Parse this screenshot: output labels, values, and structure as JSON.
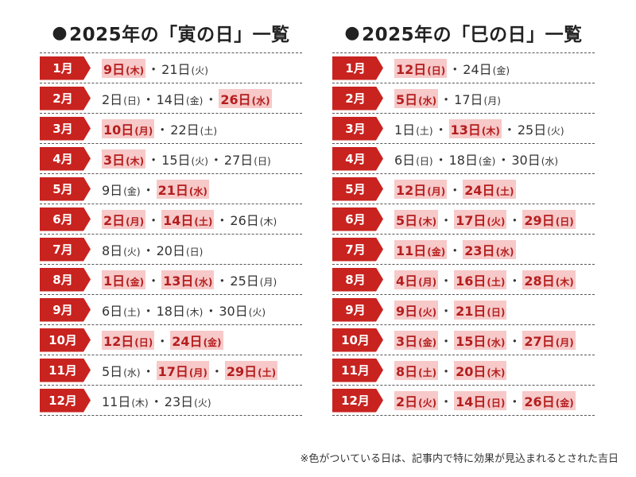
{
  "colors": {
    "accent": "#c8231f",
    "highlight_bg": "#f7c9c9",
    "highlight_text": "#b41e1e"
  },
  "tables": [
    {
      "title": "2025年の「寅の日」一覧",
      "rows": [
        {
          "month": "1月",
          "dates": [
            {
              "d": "9日",
              "w": "(木)",
              "hl": true
            },
            {
              "d": "21日",
              "w": "(火)",
              "hl": false
            }
          ]
        },
        {
          "month": "2月",
          "dates": [
            {
              "d": "2日",
              "w": "(日)",
              "hl": false
            },
            {
              "d": "14日",
              "w": "(金)",
              "hl": false
            },
            {
              "d": "26日",
              "w": "(水)",
              "hl": true
            }
          ]
        },
        {
          "month": "3月",
          "dates": [
            {
              "d": "10日",
              "w": "(月)",
              "hl": true
            },
            {
              "d": "22日",
              "w": "(土)",
              "hl": false
            }
          ]
        },
        {
          "month": "4月",
          "dates": [
            {
              "d": "3日",
              "w": "(木)",
              "hl": true
            },
            {
              "d": "15日",
              "w": "(火)",
              "hl": false
            },
            {
              "d": "27日",
              "w": "(日)",
              "hl": false
            }
          ]
        },
        {
          "month": "5月",
          "dates": [
            {
              "d": "9日",
              "w": "(金)",
              "hl": false
            },
            {
              "d": "21日",
              "w": "(水)",
              "hl": true
            }
          ]
        },
        {
          "month": "6月",
          "dates": [
            {
              "d": "2日",
              "w": "(月)",
              "hl": true
            },
            {
              "d": "14日",
              "w": "(土)",
              "hl": true
            },
            {
              "d": "26日",
              "w": "(木)",
              "hl": false
            }
          ]
        },
        {
          "month": "7月",
          "dates": [
            {
              "d": "8日",
              "w": "(火)",
              "hl": false
            },
            {
              "d": "20日",
              "w": "(日)",
              "hl": false
            }
          ]
        },
        {
          "month": "8月",
          "dates": [
            {
              "d": "1日",
              "w": "(金)",
              "hl": true
            },
            {
              "d": "13日",
              "w": "(水)",
              "hl": true
            },
            {
              "d": "25日",
              "w": "(月)",
              "hl": false
            }
          ]
        },
        {
          "month": "9月",
          "dates": [
            {
              "d": "6日",
              "w": "(土)",
              "hl": false
            },
            {
              "d": "18日",
              "w": "(木)",
              "hl": false
            },
            {
              "d": "30日",
              "w": "(火)",
              "hl": false
            }
          ]
        },
        {
          "month": "10月",
          "dates": [
            {
              "d": "12日",
              "w": "(日)",
              "hl": true
            },
            {
              "d": "24日",
              "w": "(金)",
              "hl": true
            }
          ]
        },
        {
          "month": "11月",
          "dates": [
            {
              "d": "5日",
              "w": "(水)",
              "hl": false
            },
            {
              "d": "17日",
              "w": "(月)",
              "hl": true
            },
            {
              "d": "29日",
              "w": "(土)",
              "hl": true
            }
          ]
        },
        {
          "month": "12月",
          "dates": [
            {
              "d": "11日",
              "w": "(木)",
              "hl": false
            },
            {
              "d": "23日",
              "w": "(火)",
              "hl": false
            }
          ]
        }
      ]
    },
    {
      "title": "2025年の「巳の日」一覧",
      "rows": [
        {
          "month": "1月",
          "dates": [
            {
              "d": "12日",
              "w": "(日)",
              "hl": true
            },
            {
              "d": "24日",
              "w": "(金)",
              "hl": false
            }
          ]
        },
        {
          "month": "2月",
          "dates": [
            {
              "d": "5日",
              "w": "(水)",
              "hl": true
            },
            {
              "d": "17日",
              "w": "(月)",
              "hl": false
            }
          ]
        },
        {
          "month": "3月",
          "dates": [
            {
              "d": "1日",
              "w": "(土)",
              "hl": false
            },
            {
              "d": "13日",
              "w": "(木)",
              "hl": true
            },
            {
              "d": "25日",
              "w": "(火)",
              "hl": false
            }
          ]
        },
        {
          "month": "4月",
          "dates": [
            {
              "d": "6日",
              "w": "(日)",
              "hl": false
            },
            {
              "d": "18日",
              "w": "(金)",
              "hl": false
            },
            {
              "d": "30日",
              "w": "(水)",
              "hl": false
            }
          ]
        },
        {
          "month": "5月",
          "dates": [
            {
              "d": "12日",
              "w": "(月)",
              "hl": true
            },
            {
              "d": "24日",
              "w": "(土)",
              "hl": true
            }
          ]
        },
        {
          "month": "6月",
          "dates": [
            {
              "d": "5日",
              "w": "(木)",
              "hl": true
            },
            {
              "d": "17日",
              "w": "(火)",
              "hl": true
            },
            {
              "d": "29日",
              "w": "(日)",
              "hl": true
            }
          ]
        },
        {
          "month": "7月",
          "dates": [
            {
              "d": "11日",
              "w": "(金)",
              "hl": true
            },
            {
              "d": "23日",
              "w": "(水)",
              "hl": true
            }
          ]
        },
        {
          "month": "8月",
          "dates": [
            {
              "d": "4日",
              "w": "(月)",
              "hl": true
            },
            {
              "d": "16日",
              "w": "(土)",
              "hl": true
            },
            {
              "d": "28日",
              "w": "(木)",
              "hl": true
            }
          ]
        },
        {
          "month": "9月",
          "dates": [
            {
              "d": "9日",
              "w": "(火)",
              "hl": true
            },
            {
              "d": "21日",
              "w": "(日)",
              "hl": true
            }
          ]
        },
        {
          "month": "10月",
          "dates": [
            {
              "d": "3日",
              "w": "(金)",
              "hl": true
            },
            {
              "d": "15日",
              "w": "(水)",
              "hl": true
            },
            {
              "d": "27日",
              "w": "(月)",
              "hl": true
            }
          ]
        },
        {
          "month": "11月",
          "dates": [
            {
              "d": "8日",
              "w": "(土)",
              "hl": true
            },
            {
              "d": "20日",
              "w": "(木)",
              "hl": true
            }
          ]
        },
        {
          "month": "12月",
          "dates": [
            {
              "d": "2日",
              "w": "(火)",
              "hl": true
            },
            {
              "d": "14日",
              "w": "(日)",
              "hl": true
            },
            {
              "d": "26日",
              "w": "(金)",
              "hl": true
            }
          ]
        }
      ]
    }
  ],
  "title_bullet": "●",
  "separator": "・",
  "footnote": "※色がついている日は、記事内で特に効果が見込まれるとされた吉日"
}
